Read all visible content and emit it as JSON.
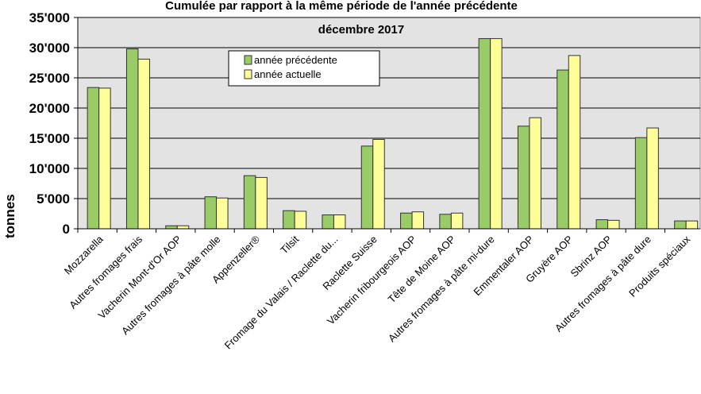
{
  "chart_data": {
    "type": "bar",
    "title": "Cumulée par rapport à la même période de l'année précédente",
    "subtitle": "décembre 2017",
    "y_label": "tonnes",
    "categories": [
      "Mozzarella",
      "Autres fromages frais",
      "Vacherin Mont-d'Or AOP",
      "Autres fromages à pâte molle",
      "Appenzeller®",
      "Tilsit",
      "Fromage du Valais / Raclette du...",
      "Raclette Suisse",
      "Vacherin fribourgeois AOP",
      "Tête de Moine AOP",
      "Autres fromages à pâte mi-dure",
      "Emmentaler AOP",
      "Gruyère AOP",
      "Sbrinz AOP",
      "Autres fromages à pâte dure",
      "Produits spéciaux"
    ],
    "series": [
      {
        "name": "année précédente",
        "color": "#99cc66",
        "values": [
          23400,
          29800,
          500,
          5300,
          8800,
          3000,
          2300,
          13700,
          2600,
          2400,
          31500,
          17000,
          26300,
          1500,
          15100,
          1300
        ]
      },
      {
        "name": "année actuelle",
        "color": "#ffff99",
        "values": [
          23300,
          28100,
          500,
          5100,
          8500,
          2900,
          2300,
          14800,
          2800,
          2600,
          31500,
          18400,
          28700,
          1400,
          16700,
          1300
        ]
      }
    ],
    "ylim": [
      0,
      35000
    ],
    "yticks": [
      0,
      {
        "value": 5000,
        "label": "5'000"
      },
      {
        "value": 10000,
        "label": "10'000"
      },
      {
        "value": 15000,
        "label": "15'000"
      },
      {
        "value": 20000,
        "label": "20'000"
      },
      {
        "value": 25000,
        "label": "25'000"
      },
      {
        "value": 30000,
        "label": "30'000"
      },
      {
        "value": 35000,
        "label": "35'000"
      }
    ],
    "grid": true,
    "legend": "top"
  }
}
